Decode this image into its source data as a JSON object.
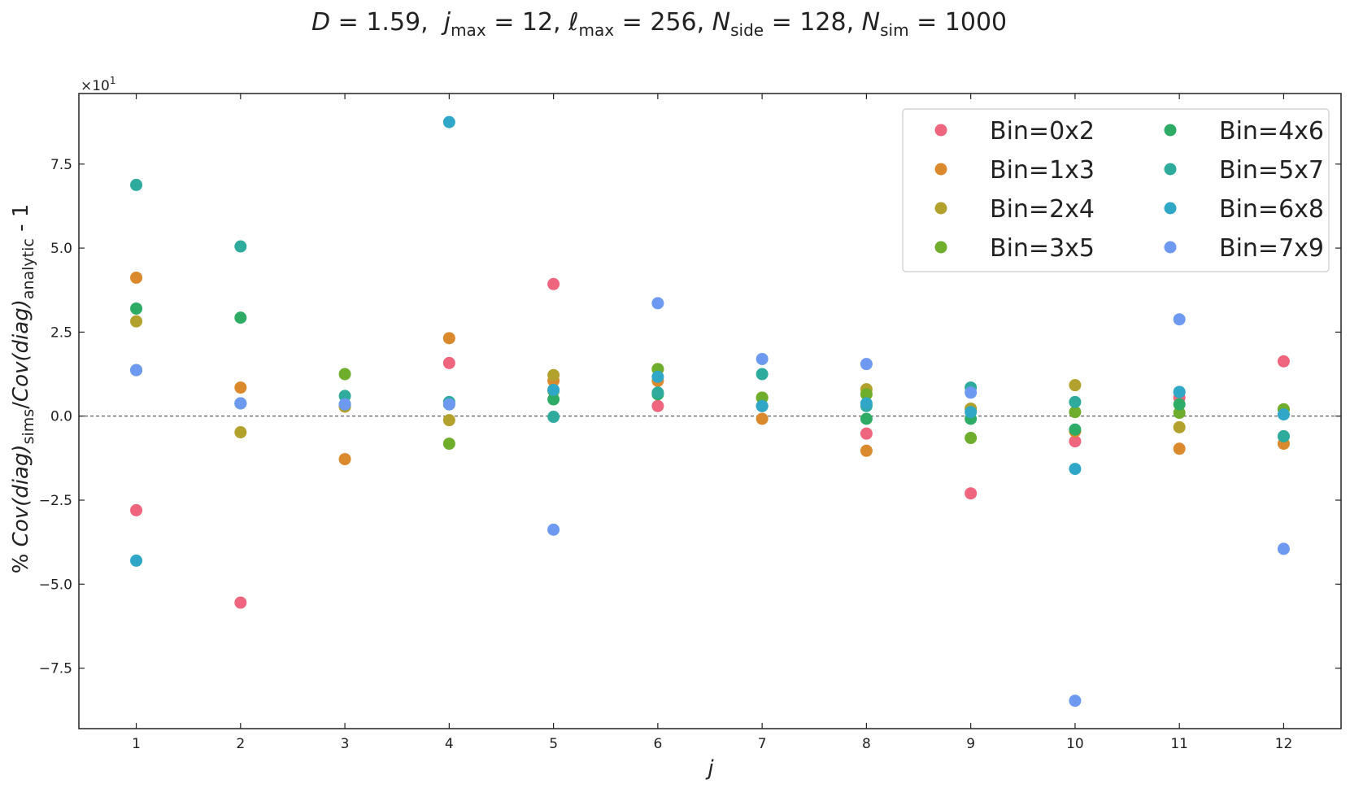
{
  "chart_data": {
    "type": "scatter",
    "title": "D = 1.59,  j_max = 12,  ℓ_max = 256,  N_side = 128,  N_sim = 1000",
    "title_parts": {
      "d": "D",
      "d_eq": " = 1.59,  ",
      "j": "j",
      "j_sub": "max",
      "j_eq": " = 12,  ",
      "l": "ℓ",
      "l_sub": "max",
      "l_eq": " = 256,  ",
      "ns": "N",
      "ns_sub": "side",
      "ns_eq": " = 128, ",
      "nsim": "N",
      "nsim_sub": "sim",
      "nsim_eq": " = 1000"
    },
    "xlabel": "j",
    "ylabel": "% Cov(diag)_sims/Cov(diag)_analytic - 1",
    "ylabel_parts": {
      "pre": "% ",
      "cov1": "Cov(diag)",
      "sub1": "sims",
      "slash": "/",
      "cov2": "Cov(diag)",
      "sub2": "analytic",
      "post": " - 1"
    },
    "y_multiplier": "×10",
    "y_multiplier_exp": "1",
    "xlim": [
      0.45,
      12.55
    ],
    "ylim": [
      -9.3,
      9.6
    ],
    "x_ticks": [
      1,
      2,
      3,
      4,
      5,
      6,
      7,
      8,
      9,
      10,
      11,
      12
    ],
    "y_ticks": [
      -7.5,
      -5.0,
      -2.5,
      0.0,
      2.5,
      5.0,
      7.5
    ],
    "y_tick_labels": [
      "−7.5",
      "−5.0",
      "−2.5",
      "0.0",
      "2.5",
      "5.0",
      "7.5"
    ],
    "reference_line_y": 0,
    "legend_placement": "top-right",
    "legend_columns": 2,
    "x": [
      1,
      2,
      3,
      4,
      5,
      6,
      7,
      8,
      9,
      10,
      11,
      12
    ],
    "series": [
      {
        "name": "Bin=0x2",
        "color": "#f0657e",
        "values": [
          -2.8,
          -5.55,
          0.3,
          1.58,
          3.93,
          0.3,
          0.3,
          -0.52,
          -2.3,
          -0.75,
          0.55,
          1.63
        ]
      },
      {
        "name": "Bin=1x3",
        "color": "#da8a2c",
        "values": [
          4.12,
          0.85,
          -1.28,
          2.32,
          1.05,
          1.05,
          -0.08,
          -1.03,
          0.22,
          -0.45,
          -0.97,
          -0.82
        ]
      },
      {
        "name": "Bin=2x4",
        "color": "#b2a12c",
        "values": [
          2.82,
          -0.48,
          0.28,
          -0.12,
          1.22,
          1.4,
          0.55,
          0.8,
          0.22,
          0.92,
          -0.33,
          0.2
        ]
      },
      {
        "name": "Bin=3x5",
        "color": "#6fad2c",
        "values": [
          1.37,
          0.38,
          1.25,
          -0.82,
          0.75,
          1.4,
          0.55,
          0.65,
          -0.65,
          0.12,
          0.1,
          0.2
        ]
      },
      {
        "name": "Bin=4x6",
        "color": "#2eac66",
        "values": [
          3.2,
          2.93,
          0.35,
          0.35,
          0.5,
          0.65,
          0.3,
          -0.08,
          -0.08,
          -0.4,
          0.35,
          -0.6
        ]
      },
      {
        "name": "Bin=5x7",
        "color": "#2fab9e",
        "values": [
          6.88,
          5.05,
          0.6,
          0.42,
          -0.02,
          0.7,
          1.25,
          0.3,
          0.85,
          0.42,
          0.72,
          -0.6
        ]
      },
      {
        "name": "Bin=6x8",
        "color": "#31a7c7",
        "values": [
          -4.3,
          0.38,
          0.35,
          8.75,
          0.78,
          1.17,
          0.3,
          0.38,
          0.12,
          -1.57,
          0.72,
          0.05
        ]
      },
      {
        "name": "Bin=7x9",
        "color": "#6d99f0",
        "values": [
          1.37,
          0.38,
          0.35,
          0.35,
          -3.38,
          3.36,
          1.7,
          1.55,
          0.7,
          -8.47,
          2.88,
          -3.95
        ]
      }
    ]
  }
}
